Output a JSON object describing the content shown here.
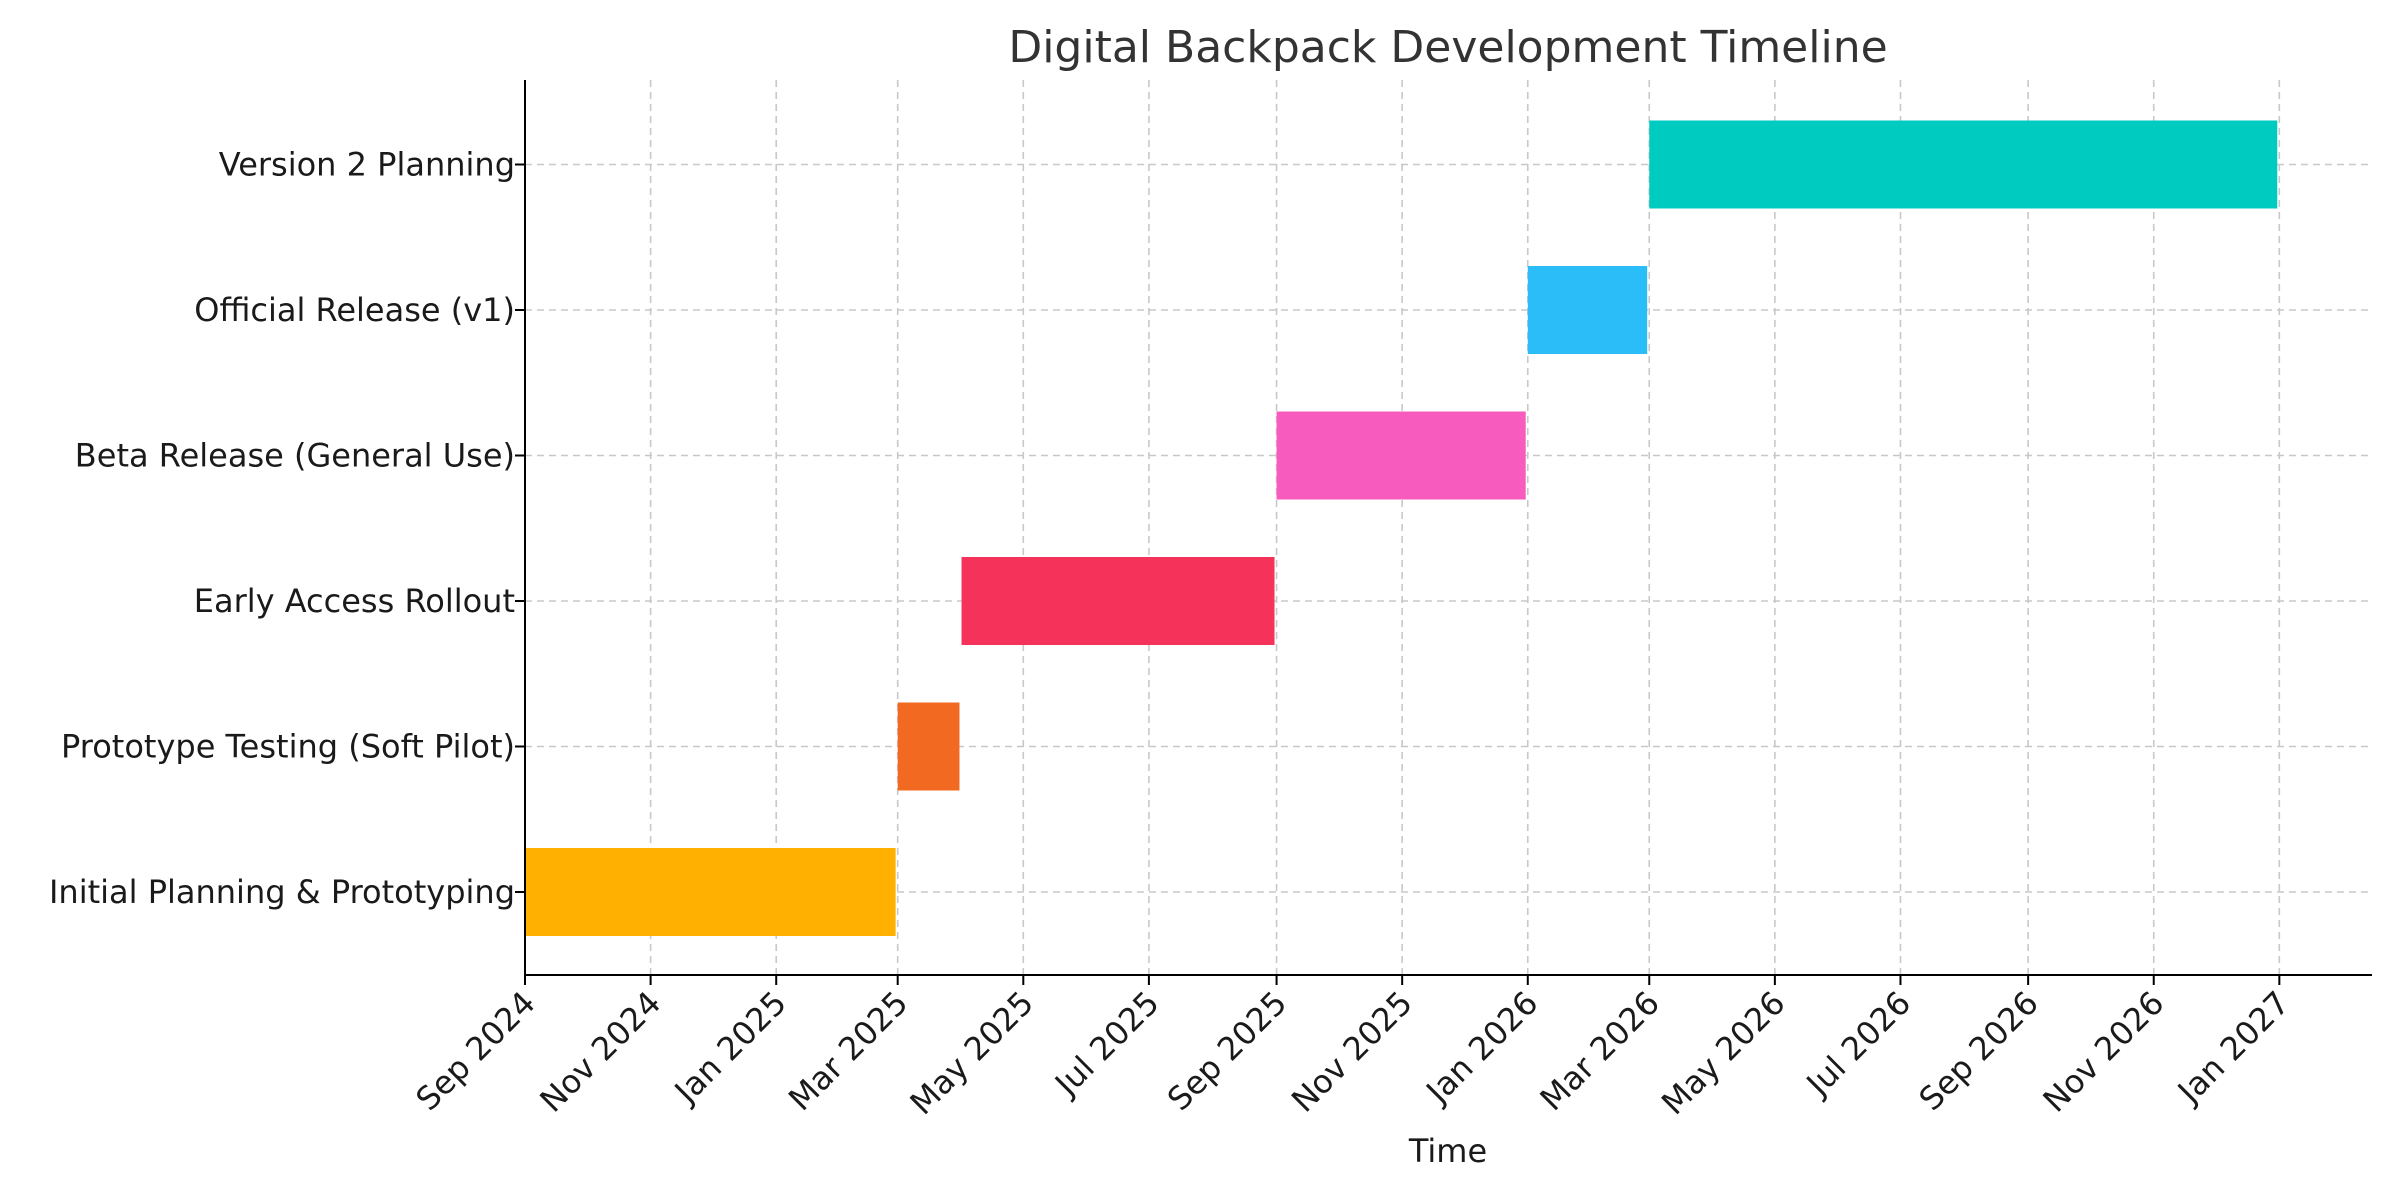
{
  "chart_data": {
    "type": "gantt",
    "title": "Digital Backpack Development Timeline",
    "xlabel": "Time",
    "ylabel": "",
    "x_range": [
      "2024-09-01",
      "2027-02-15"
    ],
    "x_ticks": [
      {
        "date": "2024-09-01",
        "label": "Sep 2024"
      },
      {
        "date": "2024-11-01",
        "label": "Nov 2024"
      },
      {
        "date": "2025-01-01",
        "label": "Jan 2025"
      },
      {
        "date": "2025-03-01",
        "label": "Mar 2025"
      },
      {
        "date": "2025-05-01",
        "label": "May 2025"
      },
      {
        "date": "2025-07-01",
        "label": "Jul 2025"
      },
      {
        "date": "2025-09-01",
        "label": "Sep 2025"
      },
      {
        "date": "2025-11-01",
        "label": "Nov 2025"
      },
      {
        "date": "2026-01-01",
        "label": "Jan 2026"
      },
      {
        "date": "2026-03-01",
        "label": "Mar 2026"
      },
      {
        "date": "2026-05-01",
        "label": "May 2026"
      },
      {
        "date": "2026-07-01",
        "label": "Jul 2026"
      },
      {
        "date": "2026-09-01",
        "label": "Sep 2026"
      },
      {
        "date": "2026-11-01",
        "label": "Nov 2026"
      },
      {
        "date": "2027-01-01",
        "label": "Jan 2027"
      }
    ],
    "grid": true,
    "tasks": [
      {
        "name": "Initial Planning & Prototyping",
        "start": "2024-09-01",
        "end": "2025-02-28",
        "color": "#FFB000"
      },
      {
        "name": "Prototype Testing (Soft Pilot)",
        "start": "2025-03-01",
        "end": "2025-03-31",
        "color": "#F26A21"
      },
      {
        "name": "Early Access Rollout",
        "start": "2025-04-01",
        "end": "2025-08-31",
        "color": "#F5325A"
      },
      {
        "name": "Beta Release (General Use)",
        "start": "2025-09-01",
        "end": "2025-12-31",
        "color": "#F75BBE"
      },
      {
        "name": "Official Release (v1)",
        "start": "2026-01-01",
        "end": "2026-02-28",
        "color": "#2BBDF7"
      },
      {
        "name": "Version 2 Planning",
        "start": "2026-03-01",
        "end": "2026-12-31",
        "color": "#00CBC0"
      }
    ]
  }
}
